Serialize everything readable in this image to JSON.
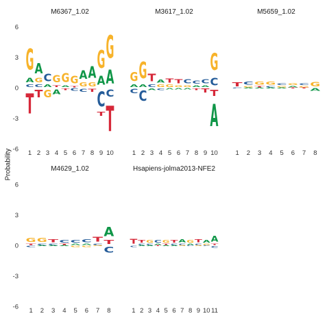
{
  "figure": {
    "ylabel": "Probability"
  },
  "colors": {
    "A": "#109648",
    "C": "#255C99",
    "G": "#F7B32B",
    "T": "#D62839"
  },
  "chart_data": [
    {
      "type": "sequence-logo",
      "title": "M6367_1.02",
      "ylim": [
        -6,
        6
      ],
      "yticks": [
        -6,
        -3,
        0,
        3,
        6
      ],
      "xticks": [
        "1",
        "2",
        "3",
        "4",
        "5",
        "6",
        "7",
        "8",
        "9",
        "10"
      ],
      "columns": [
        {
          "pos": [
            {
              "b": "G",
              "h": 3.3
            },
            {
              "b": "A",
              "h": 0.7
            },
            {
              "b": "C",
              "h": 0.4
            }
          ],
          "neg": [
            {
              "b": "T",
              "h": 3.2
            }
          ]
        },
        {
          "pos": [
            {
              "b": "A",
              "h": 1.6
            },
            {
              "b": "G",
              "h": 0.7
            },
            {
              "b": "C",
              "h": 0.4
            }
          ],
          "neg": [
            {
              "b": "T",
              "h": 1.2
            }
          ]
        },
        {
          "pos": [
            {
              "b": "C",
              "h": 1.2
            },
            {
              "b": "A",
              "h": 0.4
            }
          ],
          "neg": [
            {
              "b": "G",
              "h": 1.2
            }
          ]
        },
        {
          "pos": [
            {
              "b": "G",
              "h": 1.1
            },
            {
              "b": "T",
              "h": 0.3
            }
          ],
          "neg": [
            {
              "b": "A",
              "h": 0.8
            }
          ]
        },
        {
          "pos": [
            {
              "b": "G",
              "h": 1.4
            },
            {
              "b": "A",
              "h": 0.3
            }
          ],
          "neg": [
            {
              "b": "T",
              "h": 0.3
            }
          ]
        },
        {
          "pos": [
            {
              "b": "G",
              "h": 1.2
            },
            {
              "b": "T",
              "h": 0.2
            }
          ],
          "neg": [
            {
              "b": "C",
              "h": 0.4
            }
          ]
        },
        {
          "pos": [
            {
              "b": "A",
              "h": 1.3
            },
            {
              "b": "G",
              "h": 0.6
            }
          ],
          "neg": [
            {
              "b": "C",
              "h": 0.5
            }
          ]
        },
        {
          "pos": [
            {
              "b": "A",
              "h": 1.8
            },
            {
              "b": "G",
              "h": 0.6
            }
          ],
          "neg": [
            {
              "b": "T",
              "h": 0.5
            }
          ]
        },
        {
          "pos": [
            {
              "b": "G",
              "h": 2.8
            },
            {
              "b": "A",
              "h": 1.4
            }
          ],
          "neg": [
            {
              "b": "C",
              "h": 2.3
            },
            {
              "b": "T",
              "h": 0.6
            }
          ]
        },
        {
          "pos": [
            {
              "b": "G",
              "h": 3.6
            },
            {
              "b": "A",
              "h": 2.2
            }
          ],
          "neg": [
            {
              "b": "C",
              "h": 1.1
            },
            {
              "b": "T",
              "h": 4.0
            }
          ]
        }
      ]
    },
    {
      "type": "sequence-logo",
      "title": "M3617_1.02",
      "ylim": [
        -6,
        6
      ],
      "xticks": [
        "1",
        "2",
        "3",
        "4",
        "5",
        "6",
        "7",
        "8",
        "9",
        "10"
      ],
      "columns": [
        {
          "pos": [
            {
              "b": "G",
              "h": 1.4
            },
            {
              "b": "A",
              "h": 0.4
            }
          ],
          "neg": [
            {
              "b": "C",
              "h": 0.7
            }
          ]
        },
        {
          "pos": [
            {
              "b": "G",
              "h": 2.6
            },
            {
              "b": "A",
              "h": 0.4
            }
          ],
          "neg": [
            {
              "b": "C",
              "h": 1.6
            }
          ]
        },
        {
          "pos": [
            {
              "b": "T",
              "h": 1.2
            },
            {
              "b": "C",
              "h": 0.4
            }
          ],
          "neg": [
            {
              "b": "A",
              "h": 0.3
            }
          ]
        },
        {
          "pos": [
            {
              "b": "A",
              "h": 0.5
            },
            {
              "b": "G",
              "h": 0.4
            }
          ],
          "neg": [
            {
              "b": "C",
              "h": 0.3
            }
          ]
        },
        {
          "pos": [
            {
              "b": "T",
              "h": 0.6
            },
            {
              "b": "G",
              "h": 0.4
            }
          ],
          "neg": [
            {
              "b": "A",
              "h": 0.2
            }
          ]
        },
        {
          "pos": [
            {
              "b": "T",
              "h": 0.6
            },
            {
              "b": "G",
              "h": 0.3
            }
          ],
          "neg": [
            {
              "b": "A",
              "h": 0.2
            }
          ]
        },
        {
          "pos": [
            {
              "b": "C",
              "h": 0.6
            },
            {
              "b": "G",
              "h": 0.3
            }
          ],
          "neg": [
            {
              "b": "A",
              "h": 0.2
            }
          ]
        },
        {
          "pos": [
            {
              "b": "C",
              "h": 0.5
            },
            {
              "b": "A",
              "h": 0.3
            }
          ],
          "neg": [
            {
              "b": "T",
              "h": 0.3
            }
          ]
        },
        {
          "pos": [
            {
              "b": "C",
              "h": 0.6
            },
            {
              "b": "A",
              "h": 0.3
            }
          ],
          "neg": [
            {
              "b": "T",
              "h": 0.6
            }
          ]
        },
        {
          "pos": [
            {
              "b": "G",
              "h": 2.7
            },
            {
              "b": "C",
              "h": 1.2
            }
          ],
          "neg": [
            {
              "b": "T",
              "h": 1.0
            },
            {
              "b": "A",
              "h": 3.5
            }
          ]
        }
      ]
    },
    {
      "type": "sequence-logo",
      "title": "M5659_1.02",
      "ylim": [
        -6,
        6
      ],
      "xticks": [
        "1",
        "2",
        "3",
        "4",
        "5",
        "6",
        "7",
        "8"
      ],
      "columns": [
        {
          "pos": [
            {
              "b": "T",
              "h": 0.6
            }
          ],
          "neg": [
            {
              "b": "C",
              "h": 0.1
            }
          ]
        },
        {
          "pos": [
            {
              "b": "C",
              "h": 0.5
            },
            {
              "b": "G",
              "h": 0.2
            }
          ],
          "neg": [
            {
              "b": "A",
              "h": 0.1
            }
          ]
        },
        {
          "pos": [
            {
              "b": "G",
              "h": 0.5
            },
            {
              "b": "T",
              "h": 0.2
            }
          ],
          "neg": [
            {
              "b": "A",
              "h": 0.1
            }
          ]
        },
        {
          "pos": [
            {
              "b": "G",
              "h": 0.5
            },
            {
              "b": "C",
              "h": 0.2
            }
          ],
          "neg": [
            {
              "b": "A",
              "h": 0.1
            }
          ]
        },
        {
          "pos": [
            {
              "b": "C",
              "h": 0.3
            },
            {
              "b": "G",
              "h": 0.2
            }
          ],
          "neg": [
            {
              "b": "A",
              "h": 0.1
            }
          ]
        },
        {
          "pos": [
            {
              "b": "G",
              "h": 0.3
            },
            {
              "b": "A",
              "h": 0.2
            }
          ],
          "neg": [
            {
              "b": "T",
              "h": 0.1
            }
          ]
        },
        {
          "pos": [
            {
              "b": "C",
              "h": 0.3
            },
            {
              "b": "G",
              "h": 0.2
            }
          ],
          "neg": [
            {
              "b": "T",
              "h": 0.1
            }
          ]
        },
        {
          "pos": [
            {
              "b": "G",
              "h": 0.7
            }
          ],
          "neg": [
            {
              "b": "A",
              "h": 0.4
            }
          ]
        }
      ]
    },
    {
      "type": "sequence-logo",
      "title": "M4629_1.02",
      "ylim": [
        -6,
        6
      ],
      "yticks": [
        -6,
        -3,
        0,
        3,
        6
      ],
      "xticks": [
        "1",
        "2",
        "3",
        "4",
        "5",
        "6",
        "7",
        "8"
      ],
      "columns": [
        {
          "pos": [
            {
              "b": "G",
              "h": 0.6
            },
            {
              "b": "T",
              "h": 0.2
            }
          ],
          "neg": [
            {
              "b": "C",
              "h": 0.2
            }
          ]
        },
        {
          "pos": [
            {
              "b": "G",
              "h": 0.6
            },
            {
              "b": "C",
              "h": 0.2
            }
          ],
          "neg": [
            {
              "b": "A",
              "h": 0.1
            }
          ]
        },
        {
          "pos": [
            {
              "b": "T",
              "h": 0.5
            },
            {
              "b": "C",
              "h": 0.2
            }
          ],
          "neg": [
            {
              "b": "A",
              "h": 0.1
            }
          ]
        },
        {
          "pos": [
            {
              "b": "C",
              "h": 0.4
            },
            {
              "b": "T",
              "h": 0.2
            }
          ],
          "neg": [
            {
              "b": "A",
              "h": 0.1
            }
          ]
        },
        {
          "pos": [
            {
              "b": "C",
              "h": 0.4
            },
            {
              "b": "A",
              "h": 0.2
            }
          ],
          "neg": [
            {
              "b": "G",
              "h": 0.2
            }
          ]
        },
        {
          "pos": [
            {
              "b": "C",
              "h": 0.5
            },
            {
              "b": "A",
              "h": 0.2
            }
          ],
          "neg": [
            {
              "b": "G",
              "h": 0.2
            }
          ]
        },
        {
          "pos": [
            {
              "b": "T",
              "h": 0.8
            },
            {
              "b": "C",
              "h": 0.2
            }
          ],
          "neg": [
            {
              "b": "G",
              "h": 0.1
            }
          ]
        },
        {
          "pos": [
            {
              "b": "A",
              "h": 1.5
            },
            {
              "b": "T",
              "h": 0.6
            }
          ],
          "neg": [
            {
              "b": "C",
              "h": 0.9
            }
          ]
        }
      ]
    },
    {
      "type": "sequence-logo",
      "title": "Hsapiens-jolma2013-NFE2",
      "ylim": [
        -6,
        6
      ],
      "xticks": [
        "1",
        "2",
        "3",
        "4",
        "5",
        "6",
        "7",
        "8",
        "9",
        "10",
        "11"
      ],
      "columns": [
        {
          "pos": [
            {
              "b": "T",
              "h": 0.8
            }
          ],
          "neg": [
            {
              "b": "C",
              "h": 0.2
            }
          ]
        },
        {
          "pos": [
            {
              "b": "T",
              "h": 0.4
            },
            {
              "b": "C",
              "h": 0.2
            }
          ],
          "neg": [
            {
              "b": "A",
              "h": 0.1
            }
          ]
        },
        {
          "pos": [
            {
              "b": "G",
              "h": 0.4
            },
            {
              "b": "C",
              "h": 0.2
            }
          ],
          "neg": [
            {
              "b": "A",
              "h": 0.1
            }
          ]
        },
        {
          "pos": [
            {
              "b": "C",
              "h": 0.4
            },
            {
              "b": "A",
              "h": 0.2
            }
          ],
          "neg": [
            {
              "b": "T",
              "h": 0.1
            }
          ]
        },
        {
          "pos": [
            {
              "b": "G",
              "h": 0.4
            },
            {
              "b": "T",
              "h": 0.2
            }
          ],
          "neg": [
            {
              "b": "A",
              "h": 0.1
            }
          ]
        },
        {
          "pos": [
            {
              "b": "T",
              "h": 0.4
            },
            {
              "b": "C",
              "h": 0.2
            }
          ],
          "neg": [
            {
              "b": "A",
              "h": 0.1
            }
          ]
        },
        {
          "pos": [
            {
              "b": "A",
              "h": 0.5
            },
            {
              "b": "C",
              "h": 0.2
            }
          ],
          "neg": [
            {
              "b": "G",
              "h": 0.1
            }
          ]
        },
        {
          "pos": [
            {
              "b": "G",
              "h": 0.4
            },
            {
              "b": "A",
              "h": 0.2
            }
          ],
          "neg": [
            {
              "b": "C",
              "h": 0.1
            }
          ]
        },
        {
          "pos": [
            {
              "b": "T",
              "h": 0.5
            },
            {
              "b": "C",
              "h": 0.2
            }
          ],
          "neg": [
            {
              "b": "G",
              "h": 0.1
            }
          ]
        },
        {
          "pos": [
            {
              "b": "A",
              "h": 0.4
            },
            {
              "b": "G",
              "h": 0.2
            }
          ],
          "neg": [
            {
              "b": "C",
              "h": 0.1
            }
          ]
        },
        {
          "pos": [
            {
              "b": "A",
              "h": 0.9
            },
            {
              "b": "T",
              "h": 0.2
            }
          ],
          "neg": [
            {
              "b": "C",
              "h": 0.3
            }
          ]
        }
      ]
    }
  ]
}
